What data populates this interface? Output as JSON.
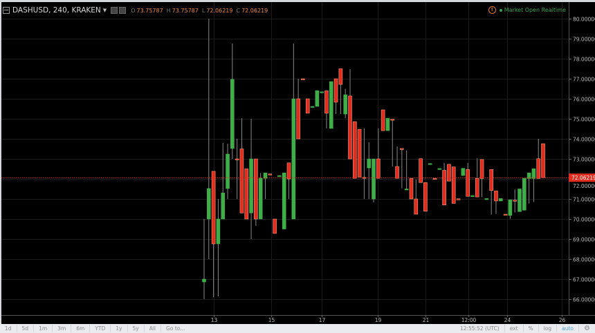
{
  "header": {
    "symbol": "DASHUSD, 240, KRAKEN",
    "ohlc": [
      {
        "label": "O",
        "value": "73.75787"
      },
      {
        "label": "H",
        "value": "73.75787"
      },
      {
        "label": "L",
        "value": "72.06219"
      },
      {
        "label": "C",
        "value": "72.06219"
      }
    ],
    "status": "Market Open  Realtime"
  },
  "colors": {
    "up": "#3fae49",
    "down": "#e02d1f",
    "down_border": "#f59a75",
    "price_line": "#e02d1f",
    "grid": "#1c1c1c"
  },
  "chart_data": {
    "type": "candlestick",
    "ylim": [
      65.6,
      80.7
    ],
    "y_ticks": [
      80,
      79,
      78,
      77,
      76,
      75,
      74,
      73,
      72,
      71,
      70,
      69,
      68,
      67,
      66
    ],
    "y_tick_labels": [
      "80.00000",
      "79.00000",
      "78.00000",
      "77.00000",
      "76.00000",
      "75.00000",
      "74.00000",
      "73.00000",
      "72.00000",
      "71.00000",
      "70.00000",
      "69.00000",
      "68.00000",
      "67.00000",
      "66.00000"
    ],
    "x_ticks": [
      {
        "label": "13",
        "bar_index": 2.0
      },
      {
        "label": "15",
        "bar_index": 14.25
      },
      {
        "label": "17",
        "bar_index": 25.0
      },
      {
        "label": "19",
        "bar_index": 36.9
      },
      {
        "label": "21",
        "bar_index": 47.0
      },
      {
        "label": "12:00",
        "bar_index": 56.1
      },
      {
        "label": "24",
        "bar_index": 64.3
      },
      {
        "label": "26",
        "bar_index": 76.0
      }
    ],
    "last_price": 72.06219,
    "last_price_label": "72.06219",
    "candles_ohlc": [
      [
        66.86,
        70.0,
        66.0,
        67.0
      ],
      [
        70.0,
        80.0,
        68.0,
        71.52
      ],
      [
        72.38,
        72.38,
        66.1,
        68.76
      ],
      [
        68.76,
        71.0,
        66.14,
        70.0
      ],
      [
        70.0,
        73.8,
        70.0,
        71.3
      ],
      [
        71.52,
        73.76,
        71.0,
        73.24
      ],
      [
        73.52,
        78.76,
        73.0,
        76.97
      ],
      [
        73.0,
        74.0,
        71.0,
        72.95
      ],
      [
        73.5,
        75.03,
        70.3,
        70.3
      ],
      [
        72.5,
        72.5,
        70.0,
        70.0
      ],
      [
        70.3,
        75.0,
        69.0,
        73.0
      ],
      [
        73.0,
        73.0,
        69.66,
        70.0
      ],
      [
        70.0,
        72.3,
        70.0,
        72.03
      ],
      [
        72.03,
        72.3,
        71.0,
        72.3
      ],
      [
        72.25,
        72.25,
        72.24,
        72.24
      ],
      [
        70.0,
        70.0,
        69.28,
        69.28
      ],
      [
        72.16,
        72.17,
        72.16,
        72.17
      ],
      [
        69.5,
        72.3,
        69.5,
        72.3
      ],
      [
        72.8,
        72.8,
        71.0,
        72.0
      ],
      [
        70.0,
        78.76,
        70.0,
        76.0
      ],
      [
        76.0,
        77.0,
        74.0,
        74.0
      ],
      [
        77.0,
        77.0,
        76.99,
        76.99
      ],
      [
        76.0,
        76.0,
        75.28,
        75.28
      ],
      [
        75.61,
        75.62,
        75.61,
        75.62
      ],
      [
        75.62,
        76.41,
        75.62,
        76.41
      ],
      [
        76.34,
        76.35,
        76.34,
        76.35
      ],
      [
        76.4,
        76.4,
        74.52,
        75.28
      ],
      [
        74.52,
        76.86,
        74.52,
        76.86
      ],
      [
        77.0,
        77.0,
        75.24,
        75.83
      ],
      [
        77.5,
        77.5,
        75.24,
        76.72
      ],
      [
        75.24,
        76.5,
        75.03,
        76.2
      ],
      [
        76.14,
        77.48,
        73.0,
        73.0
      ],
      [
        74.86,
        74.86,
        72.03,
        72.03
      ],
      [
        74.48,
        74.48,
        72.1,
        72.1
      ],
      [
        72.08,
        74.52,
        71.0,
        72.07
      ],
      [
        72.55,
        73.83,
        71.0,
        73.0
      ],
      [
        71.0,
        73.0,
        70.83,
        73.0
      ],
      [
        73.0,
        74.52,
        72.03,
        72.03
      ],
      [
        75.45,
        75.45,
        74.41,
        74.41
      ],
      [
        74.41,
        75.03,
        74.41,
        75.03
      ],
      [
        74.98,
        74.98,
        72.62,
        74.97
      ],
      [
        72.62,
        73.62,
        72.03,
        72.03
      ],
      [
        73.52,
        73.52,
        71.53,
        73.5
      ],
      [
        71.49,
        73.42,
        71.49,
        71.5
      ],
      [
        72.02,
        72.02,
        71.0,
        71.0
      ],
      [
        71.0,
        71.97,
        70.24,
        70.24
      ],
      [
        73.01,
        73.01,
        71.82,
        71.82
      ],
      [
        71.82,
        71.82,
        70.39,
        70.39
      ],
      [
        72.76,
        72.77,
        72.76,
        72.77
      ],
      [
        72.03,
        72.03,
        72.02,
        72.02
      ],
      [
        72.51,
        72.52,
        72.51,
        72.52
      ],
      [
        72.43,
        72.8,
        70.7,
        70.7
      ],
      [
        72.73,
        72.73,
        71.89,
        71.89
      ],
      [
        72.6,
        72.6,
        70.78,
        70.78
      ],
      [
        71.01,
        71.01,
        71.0,
        71.0
      ],
      [
        72.17,
        72.53,
        72.17,
        72.53
      ],
      [
        72.47,
        72.8,
        71.13,
        71.13
      ],
      [
        71.16,
        71.17,
        71.16,
        71.17
      ],
      [
        72.02,
        73.03,
        71.1,
        71.1
      ],
      [
        72.97,
        72.97,
        71.1,
        72.02
      ],
      [
        71.01,
        71.02,
        71.01,
        71.02
      ],
      [
        72.47,
        72.47,
        70.22,
        71.42
      ],
      [
        71.4,
        71.4,
        70.25,
        70.9
      ],
      [
        70.9,
        71.02,
        70.9,
        71.02
      ],
      [
        70.24,
        70.24,
        70.23,
        70.23
      ],
      [
        70.18,
        70.96,
        70.01,
        70.96
      ],
      [
        70.94,
        71.48,
        70.32,
        70.93
      ],
      [
        70.37,
        71.5,
        70.37,
        71.5
      ],
      [
        70.44,
        72.03,
        70.44,
        72.03
      ],
      [
        72.02,
        72.3,
        70.78,
        72.3
      ],
      [
        72.02,
        72.51,
        70.85,
        72.51
      ],
      [
        73.01,
        74.0,
        72.02,
        72.02
      ],
      [
        73.75787,
        73.75787,
        72.06219,
        72.06219
      ]
    ]
  },
  "toolbar": {
    "ranges": [
      "1d",
      "5d",
      "1m",
      "3m",
      "6m",
      "YTD",
      "1y",
      "5y",
      "All"
    ],
    "goto": "Go to...",
    "time": "12:55:52 (UTC)",
    "ext": "ext",
    "percent": "%",
    "log": "log",
    "auto": "auto"
  }
}
